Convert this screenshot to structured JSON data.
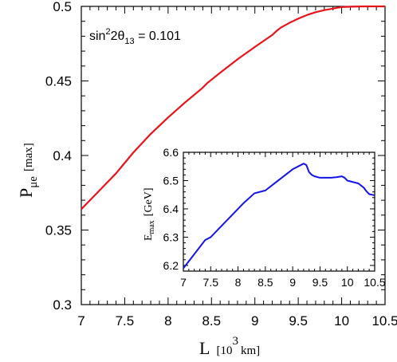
{
  "chart_data": [
    {
      "type": "line",
      "title": "",
      "xlabel": {
        "main": "L",
        "bracket_open": "[",
        "base": "10",
        "exponent": "3",
        "unit": "km",
        "bracket_close": "]"
      },
      "ylabel": {
        "main": "P",
        "subscript": "μe",
        "qualifier": "[max]"
      },
      "xlim": [
        7,
        10.5
      ],
      "ylim": [
        0.3,
        0.5
      ],
      "xticks": [
        7,
        7.5,
        8,
        8.5,
        9,
        9.5,
        10,
        10.5
      ],
      "xtick_labels": [
        "7",
        "7.5",
        "8",
        "8.5",
        "9",
        "9.5",
        "10",
        "10.5"
      ],
      "yticks": [
        0.3,
        0.35,
        0.4,
        0.45,
        0.5
      ],
      "ytick_labels": [
        "0.3",
        "0.35",
        "0.4",
        "0.45",
        "0.5"
      ],
      "annotation": {
        "prefix": "sin",
        "sup": "2",
        "middle": "2θ",
        "sub": "13",
        "suffix": " = 0.101"
      },
      "grid": false,
      "series": [
        {
          "color": "#e8141c",
          "x": [
            7.0,
            7.2,
            7.4,
            7.45,
            7.6,
            7.8,
            8.0,
            8.2,
            8.4,
            8.45,
            8.6,
            8.8,
            9.0,
            9.2,
            9.25,
            9.3,
            9.4,
            9.5,
            9.6,
            9.7,
            9.8,
            9.9,
            9.95,
            10.0,
            10.1,
            10.2,
            10.3,
            10.4,
            10.5
          ],
          "y": [
            0.364,
            0.376,
            0.388,
            0.3915,
            0.402,
            0.4145,
            0.4255,
            0.4358,
            0.4455,
            0.4485,
            0.4555,
            0.4645,
            0.4728,
            0.4808,
            0.4835,
            0.4858,
            0.489,
            0.4918,
            0.4942,
            0.4961,
            0.4975,
            0.4985,
            0.4991,
            0.4995,
            0.4998,
            0.49995,
            0.5,
            0.5,
            0.5
          ]
        }
      ]
    },
    {
      "type": "line",
      "title": "",
      "xlabel": "",
      "ylabel": {
        "main": "E",
        "subscript": "max",
        "unit": "[GeV]"
      },
      "xlim": [
        7,
        10.5
      ],
      "ylim": [
        6.18,
        6.6
      ],
      "xticks": [
        7,
        7.5,
        8,
        8.5,
        9,
        9.5,
        10,
        10.5
      ],
      "xtick_labels": [
        "7",
        "7.5",
        "8",
        "8.5",
        "9",
        "9.5",
        "10",
        "10.5"
      ],
      "yticks": [
        6.2,
        6.3,
        6.4,
        6.5,
        6.6
      ],
      "ytick_labels": [
        "6.2",
        "6.3",
        "6.4",
        "6.5",
        "6.6"
      ],
      "grid": false,
      "series": [
        {
          "color": "#1414e6",
          "x": [
            7.0,
            7.1,
            7.2,
            7.3,
            7.4,
            7.5,
            7.7,
            7.9,
            8.1,
            8.3,
            8.5,
            8.6,
            8.8,
            9.0,
            9.2,
            9.25,
            9.3,
            9.35,
            9.4,
            9.5,
            9.6,
            9.7,
            9.8,
            9.9,
            9.95,
            10.0,
            10.1,
            10.2,
            10.3,
            10.35,
            10.4,
            10.5
          ],
          "y": [
            6.19,
            6.215,
            6.24,
            6.265,
            6.29,
            6.3,
            6.34,
            6.38,
            6.42,
            6.455,
            6.465,
            6.48,
            6.51,
            6.54,
            6.56,
            6.555,
            6.53,
            6.52,
            6.515,
            6.51,
            6.51,
            6.51,
            6.512,
            6.515,
            6.51,
            6.5,
            6.495,
            6.49,
            6.475,
            6.462,
            6.452,
            6.448
          ]
        }
      ]
    }
  ]
}
